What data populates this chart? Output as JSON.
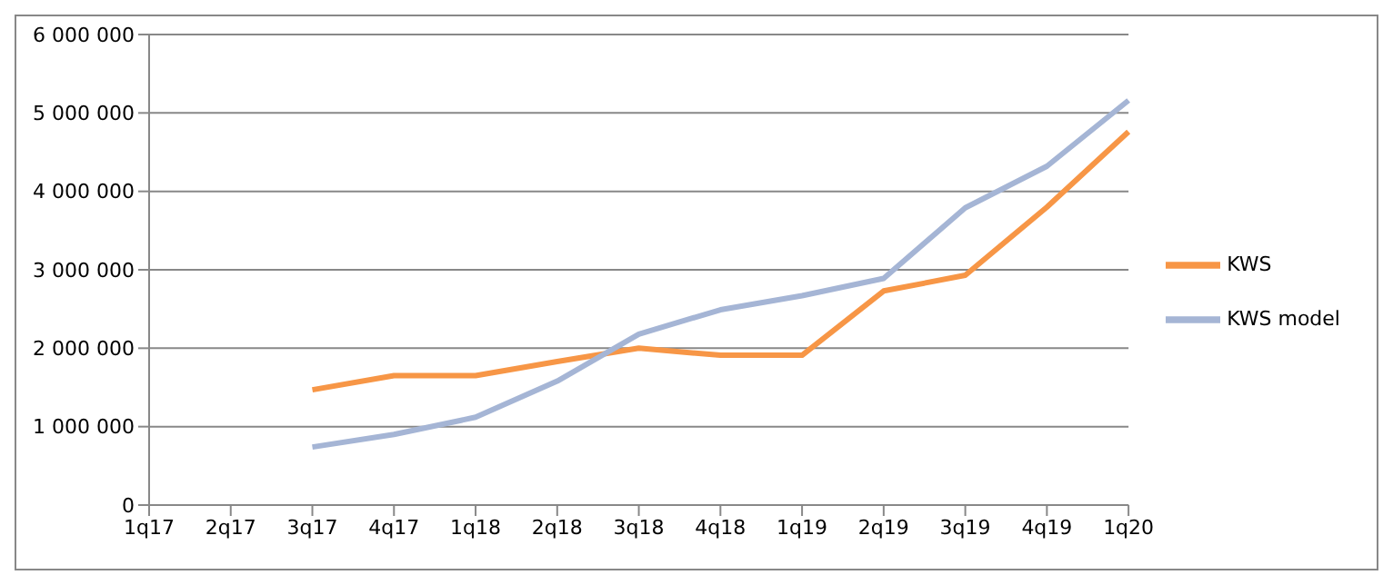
{
  "chart_data": {
    "type": "line",
    "categories": [
      "1q17",
      "2q17",
      "3q17",
      "4q17",
      "1q18",
      "2q18",
      "3q18",
      "4q18",
      "1q19",
      "2q19",
      "3q19",
      "4q19",
      "1q20"
    ],
    "series": [
      {
        "name": "KWS",
        "color": "#f79646",
        "values": [
          null,
          null,
          1470000,
          1650000,
          1650000,
          1830000,
          2000000,
          1910000,
          1910000,
          2730000,
          2930000,
          3800000,
          4760000
        ]
      },
      {
        "name": "KWS model",
        "color": "#a5b5d5",
        "values": [
          null,
          null,
          740000,
          900000,
          1120000,
          1580000,
          2180000,
          2490000,
          2670000,
          2890000,
          3790000,
          4320000,
          5160000
        ]
      }
    ],
    "ylim": [
      0,
      6000000
    ],
    "yticks": [
      0,
      {
        "value": 1000000,
        "label": "1 000 000"
      },
      {
        "value": 2000000,
        "label": "2 000 000"
      },
      {
        "value": 3000000,
        "label": "3 000 000"
      },
      {
        "value": 4000000,
        "label": "4 000 000"
      },
      {
        "value": 5000000,
        "label": "5 000 000"
      },
      {
        "value": 6000000,
        "label": "6 000 000"
      }
    ],
    "grid": "y",
    "legend": "right",
    "marker": "none",
    "line_style": "solid"
  }
}
